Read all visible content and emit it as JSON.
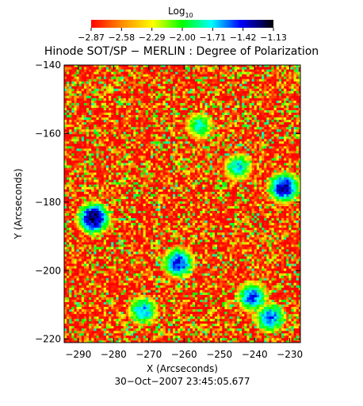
{
  "colorbar": {
    "label_main": "Log",
    "label_sub": "10",
    "tick_labels": [
      "−2.87",
      "−2.58",
      "−2.29",
      "−2.00",
      "−1.71",
      "−1.42",
      "−1.13"
    ],
    "range": [
      -2.87,
      -1.13
    ],
    "colors": [
      "#ff0000",
      "#ff8c00",
      "#ffff00",
      "#00ff00",
      "#00ffff",
      "#0000ff",
      "#000000"
    ]
  },
  "chart_data": {
    "type": "heatmap",
    "title": "Hinode SOT/SP − MERLIN : Degree of Polarization",
    "xlabel": "X (Arcseconds)",
    "ylabel": "Y (Arcseconds)",
    "xlim": [
      -294,
      -227
    ],
    "ylim": [
      -221,
      -140
    ],
    "x_ticks": [
      -290,
      -280,
      -270,
      -260,
      -250,
      -240,
      -230
    ],
    "y_ticks": [
      -220,
      -200,
      -180,
      -160,
      -140
    ],
    "x_tick_labels": [
      "−290",
      "−280",
      "−270",
      "−260",
      "−250",
      "−240",
      "−230"
    ],
    "y_tick_labels": [
      "−220",
      "−200",
      "−180",
      "−160",
      "−140"
    ],
    "colorscale": "log10 degree of polarization, red (low) to blue/black (high)",
    "value_range": [
      -2.87,
      -1.13
    ],
    "high_polarization_patches": [
      {
        "x": -286,
        "y": -185,
        "value": -1.2
      },
      {
        "x": -232,
        "y": -176,
        "value": -1.3
      },
      {
        "x": -262,
        "y": -198,
        "value": -1.4
      },
      {
        "x": -241,
        "y": -208,
        "value": -1.5
      },
      {
        "x": -236,
        "y": -214,
        "value": -1.5
      },
      {
        "x": -272,
        "y": -212,
        "value": -1.6
      },
      {
        "x": -245,
        "y": -170,
        "value": -1.7
      },
      {
        "x": -256,
        "y": -158,
        "value": -1.8
      }
    ]
  },
  "timestamp": "30−Oct−2007 23:45:05.677"
}
